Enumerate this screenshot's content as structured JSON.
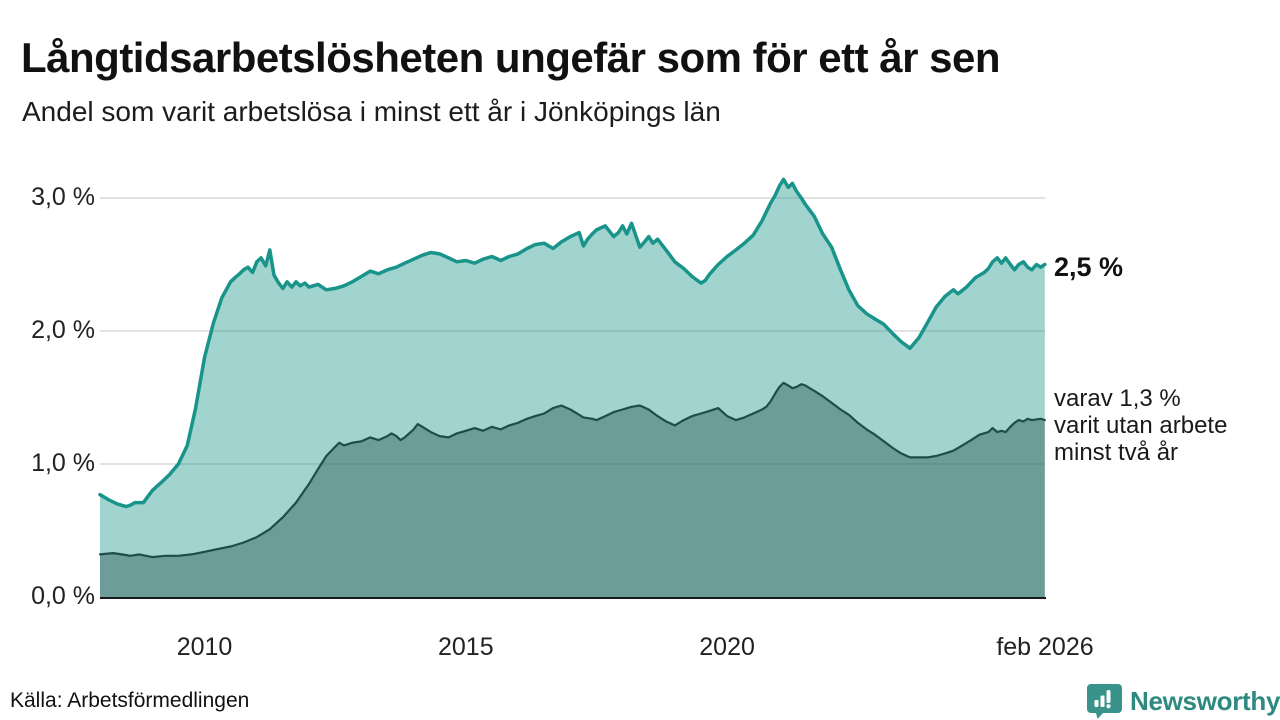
{
  "header": {
    "title": "Långtidsarbetslösheten ungefär som för ett år sen",
    "subtitle": "Andel som varit arbetslösa i minst ett år i Jönköpings län"
  },
  "annotations": {
    "primary": "2,5 %",
    "secondary_lines": [
      "varav 1,3 %",
      "varit utan arbete",
      "minst två år"
    ]
  },
  "footer": {
    "source": "Källa: Arbetsförmedlingen",
    "brand": "Newsworthy"
  },
  "colors": {
    "series1_line": "#18948A",
    "series1_fill": "rgba(26,148,138,0.41)",
    "series2_line": "#1E4E49",
    "series2_fill": "rgba(31,78,73,0.40)",
    "gridline": "#d8d8d8",
    "axis_line": "#1a1a1a",
    "brand_teal": "#2E8A80",
    "logo_icon_teal": "#3A938A"
  },
  "chart_data": {
    "type": "area",
    "title": "Långtidsarbetslösheten ungefär som för ett år sen",
    "subtitle": "Andel som varit arbetslösa i minst ett år i Jönköpings län",
    "xlabel": "",
    "ylabel": "",
    "grid": "horizontal",
    "legend_position": "right-edge-annotations",
    "x_unit": "decimal_year",
    "y_unit": "percent",
    "x_range": [
      2008.0,
      2026.083
    ],
    "y_range": [
      0,
      3.2
    ],
    "x_ticks": [
      {
        "value": 2010,
        "label": "2010"
      },
      {
        "value": 2015,
        "label": "2015"
      },
      {
        "value": 2020,
        "label": "2020"
      },
      {
        "value": 2026.083,
        "label": "feb 2026"
      }
    ],
    "y_ticks": [
      {
        "value": 0,
        "label": "0,0 %"
      },
      {
        "value": 1,
        "label": "1,0 %"
      },
      {
        "value": 2,
        "label": "2,0 %"
      },
      {
        "value": 3,
        "label": "3,0 %"
      }
    ],
    "series": [
      {
        "name": "Arbetslösa minst ett år",
        "end_value": 2.5,
        "end_label": "2,5 %",
        "line_color": "#18948A",
        "fill_color": "rgba(26,148,138,0.41)",
        "line_width": 3.5,
        "points": [
          [
            2008.0,
            0.77
          ],
          [
            2008.17,
            0.73
          ],
          [
            2008.33,
            0.7
          ],
          [
            2008.5,
            0.68
          ],
          [
            2008.58,
            0.69
          ],
          [
            2008.67,
            0.71
          ],
          [
            2008.83,
            0.71
          ],
          [
            2009.0,
            0.8
          ],
          [
            2009.17,
            0.86
          ],
          [
            2009.33,
            0.92
          ],
          [
            2009.5,
            1.0
          ],
          [
            2009.67,
            1.14
          ],
          [
            2009.83,
            1.42
          ],
          [
            2010.0,
            1.8
          ],
          [
            2010.17,
            2.06
          ],
          [
            2010.33,
            2.25
          ],
          [
            2010.5,
            2.37
          ],
          [
            2010.58,
            2.4
          ],
          [
            2010.67,
            2.43
          ],
          [
            2010.75,
            2.46
          ],
          [
            2010.83,
            2.48
          ],
          [
            2010.92,
            2.44
          ],
          [
            2011.0,
            2.52
          ],
          [
            2011.08,
            2.55
          ],
          [
            2011.17,
            2.49
          ],
          [
            2011.25,
            2.61
          ],
          [
            2011.33,
            2.42
          ],
          [
            2011.42,
            2.36
          ],
          [
            2011.5,
            2.32
          ],
          [
            2011.58,
            2.37
          ],
          [
            2011.67,
            2.33
          ],
          [
            2011.75,
            2.37
          ],
          [
            2011.83,
            2.34
          ],
          [
            2011.92,
            2.36
          ],
          [
            2012.0,
            2.33
          ],
          [
            2012.17,
            2.35
          ],
          [
            2012.33,
            2.31
          ],
          [
            2012.5,
            2.32
          ],
          [
            2012.67,
            2.34
          ],
          [
            2012.83,
            2.37
          ],
          [
            2013.0,
            2.41
          ],
          [
            2013.17,
            2.45
          ],
          [
            2013.33,
            2.43
          ],
          [
            2013.5,
            2.46
          ],
          [
            2013.67,
            2.48
          ],
          [
            2013.83,
            2.51
          ],
          [
            2014.0,
            2.54
          ],
          [
            2014.17,
            2.57
          ],
          [
            2014.33,
            2.59
          ],
          [
            2014.5,
            2.58
          ],
          [
            2014.67,
            2.55
          ],
          [
            2014.83,
            2.52
          ],
          [
            2015.0,
            2.53
          ],
          [
            2015.17,
            2.51
          ],
          [
            2015.33,
            2.54
          ],
          [
            2015.5,
            2.56
          ],
          [
            2015.67,
            2.53
          ],
          [
            2015.83,
            2.56
          ],
          [
            2016.0,
            2.58
          ],
          [
            2016.17,
            2.62
          ],
          [
            2016.33,
            2.65
          ],
          [
            2016.5,
            2.66
          ],
          [
            2016.67,
            2.62
          ],
          [
            2016.83,
            2.67
          ],
          [
            2017.0,
            2.71
          ],
          [
            2017.17,
            2.74
          ],
          [
            2017.25,
            2.64
          ],
          [
            2017.33,
            2.69
          ],
          [
            2017.42,
            2.73
          ],
          [
            2017.5,
            2.76
          ],
          [
            2017.67,
            2.79
          ],
          [
            2017.75,
            2.75
          ],
          [
            2017.83,
            2.71
          ],
          [
            2017.92,
            2.74
          ],
          [
            2018.0,
            2.79
          ],
          [
            2018.08,
            2.73
          ],
          [
            2018.17,
            2.81
          ],
          [
            2018.25,
            2.72
          ],
          [
            2018.33,
            2.63
          ],
          [
            2018.42,
            2.67
          ],
          [
            2018.5,
            2.71
          ],
          [
            2018.58,
            2.66
          ],
          [
            2018.67,
            2.69
          ],
          [
            2018.75,
            2.65
          ],
          [
            2018.83,
            2.61
          ],
          [
            2019.0,
            2.52
          ],
          [
            2019.17,
            2.47
          ],
          [
            2019.33,
            2.41
          ],
          [
            2019.5,
            2.36
          ],
          [
            2019.58,
            2.38
          ],
          [
            2019.67,
            2.43
          ],
          [
            2019.83,
            2.5
          ],
          [
            2020.0,
            2.56
          ],
          [
            2020.17,
            2.61
          ],
          [
            2020.33,
            2.66
          ],
          [
            2020.5,
            2.72
          ],
          [
            2020.67,
            2.83
          ],
          [
            2020.83,
            2.96
          ],
          [
            2020.92,
            3.02
          ],
          [
            2021.0,
            3.09
          ],
          [
            2021.08,
            3.14
          ],
          [
            2021.17,
            3.08
          ],
          [
            2021.25,
            3.11
          ],
          [
            2021.33,
            3.05
          ],
          [
            2021.42,
            3.0
          ],
          [
            2021.5,
            2.95
          ],
          [
            2021.67,
            2.86
          ],
          [
            2021.83,
            2.73
          ],
          [
            2022.0,
            2.63
          ],
          [
            2022.17,
            2.46
          ],
          [
            2022.33,
            2.31
          ],
          [
            2022.5,
            2.19
          ],
          [
            2022.67,
            2.13
          ],
          [
            2022.83,
            2.09
          ],
          [
            2023.0,
            2.05
          ],
          [
            2023.17,
            1.98
          ],
          [
            2023.33,
            1.92
          ],
          [
            2023.5,
            1.87
          ],
          [
            2023.67,
            1.95
          ],
          [
            2023.83,
            2.06
          ],
          [
            2024.0,
            2.18
          ],
          [
            2024.17,
            2.26
          ],
          [
            2024.33,
            2.31
          ],
          [
            2024.42,
            2.28
          ],
          [
            2024.58,
            2.33
          ],
          [
            2024.75,
            2.4
          ],
          [
            2024.92,
            2.44
          ],
          [
            2025.0,
            2.47
          ],
          [
            2025.08,
            2.52
          ],
          [
            2025.17,
            2.55
          ],
          [
            2025.25,
            2.51
          ],
          [
            2025.33,
            2.55
          ],
          [
            2025.42,
            2.5
          ],
          [
            2025.5,
            2.46
          ],
          [
            2025.58,
            2.5
          ],
          [
            2025.67,
            2.52
          ],
          [
            2025.75,
            2.48
          ],
          [
            2025.83,
            2.46
          ],
          [
            2025.92,
            2.5
          ],
          [
            2026.0,
            2.48
          ],
          [
            2026.08,
            2.5
          ]
        ]
      },
      {
        "name": "Arbetslösa minst två år",
        "end_value": 1.3,
        "end_label": "varav 1,3 % varit utan arbete minst två år",
        "line_color": "#1E4E49",
        "fill_color": "rgba(31,78,73,0.40)",
        "line_width": 2.2,
        "points": [
          [
            2008.0,
            0.32
          ],
          [
            2008.25,
            0.33
          ],
          [
            2008.42,
            0.32
          ],
          [
            2008.58,
            0.31
          ],
          [
            2008.75,
            0.32
          ],
          [
            2009.0,
            0.3
          ],
          [
            2009.25,
            0.31
          ],
          [
            2009.5,
            0.31
          ],
          [
            2009.75,
            0.32
          ],
          [
            2010.0,
            0.34
          ],
          [
            2010.25,
            0.36
          ],
          [
            2010.5,
            0.38
          ],
          [
            2010.75,
            0.41
          ],
          [
            2011.0,
            0.45
          ],
          [
            2011.25,
            0.51
          ],
          [
            2011.5,
            0.6
          ],
          [
            2011.75,
            0.71
          ],
          [
            2012.0,
            0.85
          ],
          [
            2012.17,
            0.96
          ],
          [
            2012.33,
            1.06
          ],
          [
            2012.5,
            1.13
          ],
          [
            2012.58,
            1.16
          ],
          [
            2012.67,
            1.14
          ],
          [
            2012.83,
            1.16
          ],
          [
            2013.0,
            1.17
          ],
          [
            2013.17,
            1.2
          ],
          [
            2013.33,
            1.18
          ],
          [
            2013.5,
            1.21
          ],
          [
            2013.58,
            1.23
          ],
          [
            2013.67,
            1.21
          ],
          [
            2013.75,
            1.18
          ],
          [
            2013.83,
            1.2
          ],
          [
            2014.0,
            1.26
          ],
          [
            2014.08,
            1.3
          ],
          [
            2014.17,
            1.28
          ],
          [
            2014.33,
            1.24
          ],
          [
            2014.5,
            1.21
          ],
          [
            2014.67,
            1.2
          ],
          [
            2014.83,
            1.23
          ],
          [
            2015.0,
            1.25
          ],
          [
            2015.17,
            1.27
          ],
          [
            2015.33,
            1.25
          ],
          [
            2015.5,
            1.28
          ],
          [
            2015.67,
            1.26
          ],
          [
            2015.83,
            1.29
          ],
          [
            2016.0,
            1.31
          ],
          [
            2016.17,
            1.34
          ],
          [
            2016.33,
            1.36
          ],
          [
            2016.5,
            1.38
          ],
          [
            2016.67,
            1.42
          ],
          [
            2016.83,
            1.44
          ],
          [
            2017.0,
            1.41
          ],
          [
            2017.17,
            1.37
          ],
          [
            2017.25,
            1.35
          ],
          [
            2017.42,
            1.34
          ],
          [
            2017.5,
            1.33
          ],
          [
            2017.67,
            1.36
          ],
          [
            2017.83,
            1.39
          ],
          [
            2018.0,
            1.41
          ],
          [
            2018.17,
            1.43
          ],
          [
            2018.33,
            1.44
          ],
          [
            2018.5,
            1.41
          ],
          [
            2018.67,
            1.36
          ],
          [
            2018.83,
            1.32
          ],
          [
            2019.0,
            1.29
          ],
          [
            2019.17,
            1.33
          ],
          [
            2019.33,
            1.36
          ],
          [
            2019.5,
            1.38
          ],
          [
            2019.67,
            1.4
          ],
          [
            2019.83,
            1.42
          ],
          [
            2020.0,
            1.36
          ],
          [
            2020.17,
            1.33
          ],
          [
            2020.33,
            1.35
          ],
          [
            2020.5,
            1.38
          ],
          [
            2020.67,
            1.41
          ],
          [
            2020.75,
            1.43
          ],
          [
            2020.83,
            1.47
          ],
          [
            2020.92,
            1.53
          ],
          [
            2021.0,
            1.58
          ],
          [
            2021.08,
            1.61
          ],
          [
            2021.17,
            1.59
          ],
          [
            2021.25,
            1.57
          ],
          [
            2021.33,
            1.58
          ],
          [
            2021.42,
            1.6
          ],
          [
            2021.5,
            1.59
          ],
          [
            2021.58,
            1.57
          ],
          [
            2021.67,
            1.55
          ],
          [
            2021.83,
            1.51
          ],
          [
            2022.0,
            1.46
          ],
          [
            2022.17,
            1.41
          ],
          [
            2022.33,
            1.37
          ],
          [
            2022.5,
            1.31
          ],
          [
            2022.67,
            1.26
          ],
          [
            2022.83,
            1.22
          ],
          [
            2023.0,
            1.17
          ],
          [
            2023.17,
            1.12
          ],
          [
            2023.33,
            1.08
          ],
          [
            2023.5,
            1.05
          ],
          [
            2023.67,
            1.05
          ],
          [
            2023.83,
            1.05
          ],
          [
            2024.0,
            1.06
          ],
          [
            2024.17,
            1.08
          ],
          [
            2024.33,
            1.1
          ],
          [
            2024.5,
            1.14
          ],
          [
            2024.67,
            1.18
          ],
          [
            2024.83,
            1.22
          ],
          [
            2025.0,
            1.24
          ],
          [
            2025.08,
            1.27
          ],
          [
            2025.17,
            1.24
          ],
          [
            2025.25,
            1.25
          ],
          [
            2025.33,
            1.24
          ],
          [
            2025.42,
            1.28
          ],
          [
            2025.5,
            1.31
          ],
          [
            2025.58,
            1.33
          ],
          [
            2025.67,
            1.32
          ],
          [
            2025.75,
            1.34
          ],
          [
            2025.83,
            1.33
          ],
          [
            2026.0,
            1.34
          ],
          [
            2026.08,
            1.33
          ]
        ]
      }
    ]
  }
}
